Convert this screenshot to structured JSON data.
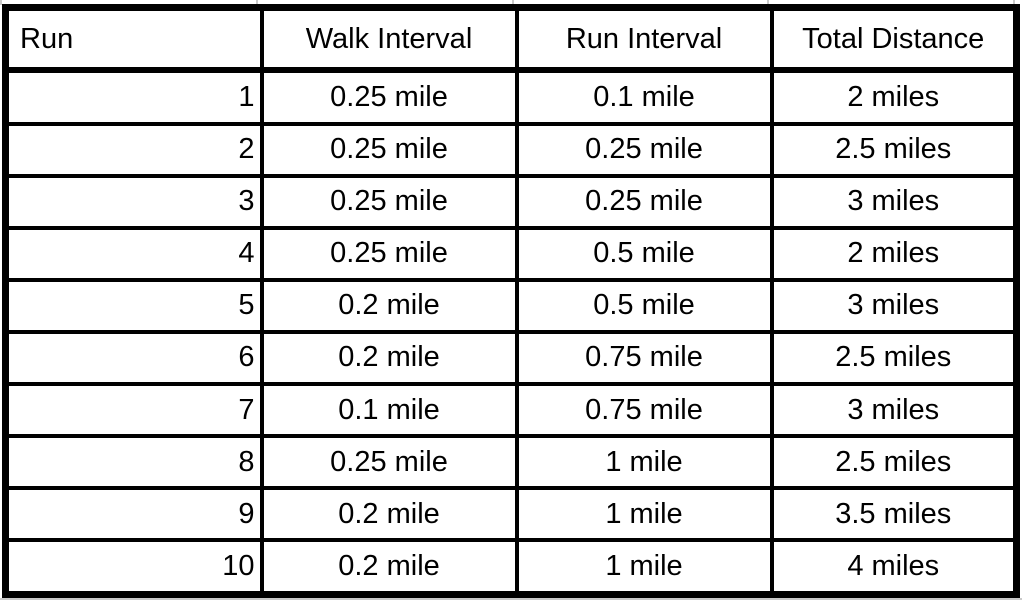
{
  "chart_data": {
    "type": "table",
    "columns": [
      "Run",
      "Walk Interval",
      "Run Interval",
      "Total Distance"
    ],
    "rows": [
      [
        "1",
        "0.25 mile",
        "0.1 mile",
        "2 miles"
      ],
      [
        "2",
        "0.25 mile",
        "0.25 mile",
        "2.5 miles"
      ],
      [
        "3",
        "0.25 mile",
        "0.25 mile",
        "3 miles"
      ],
      [
        "4",
        "0.25 mile",
        "0.5 mile",
        "2 miles"
      ],
      [
        "5",
        "0.2 mile",
        "0.5 mile",
        "3 miles"
      ],
      [
        "6",
        "0.2 mile",
        "0.75 mile",
        "2.5 miles"
      ],
      [
        "7",
        "0.1 mile",
        "0.75 mile",
        "3 miles"
      ],
      [
        "8",
        "0.25 mile",
        "1 mile",
        "2.5 miles"
      ],
      [
        "9",
        "0.2 mile",
        "1 mile",
        "3.5 miles"
      ],
      [
        "10",
        "0.2 mile",
        "1 mile",
        "4 miles"
      ]
    ],
    "numeric": {
      "run": [
        1,
        2,
        3,
        4,
        5,
        6,
        7,
        8,
        9,
        10
      ],
      "walk_interval_miles": [
        0.25,
        0.25,
        0.25,
        0.25,
        0.2,
        0.2,
        0.1,
        0.25,
        0.2,
        0.2
      ],
      "run_interval_miles": [
        0.1,
        0.25,
        0.25,
        0.5,
        0.5,
        0.75,
        0.75,
        1,
        1,
        1
      ],
      "total_distance_miles": [
        2,
        2.5,
        3,
        2,
        3,
        2.5,
        3,
        2.5,
        3.5,
        4
      ]
    }
  },
  "colors": {
    "border": "#000000",
    "text": "#000000",
    "background": "#ffffff",
    "gridline": "#c9c9c9"
  }
}
